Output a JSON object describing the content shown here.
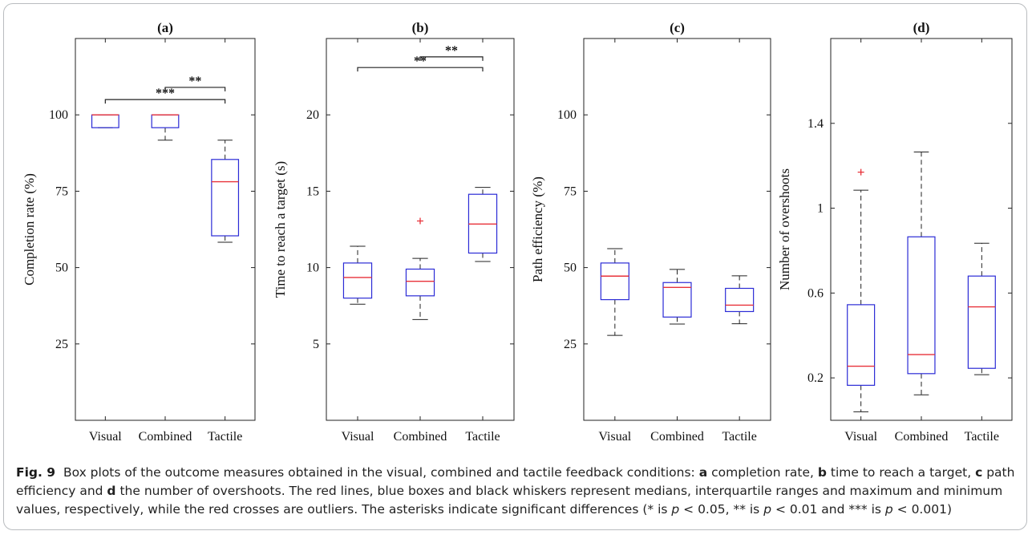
{
  "colors": {
    "box": "#2b2bd6",
    "median": "#e8323a",
    "whisker": "#222222",
    "outlier": "#e8323a",
    "axis": "#222222"
  },
  "chart_data": [
    {
      "type": "box",
      "title": "(a)",
      "ylabel": "Completion rate (%)",
      "ylim": [
        0,
        125
      ],
      "yticks": [
        25,
        50,
        75,
        100
      ],
      "categories": [
        "Visual",
        "Combined",
        "Tactile"
      ],
      "boxes": [
        {
          "q1": 95.8,
          "median": 100,
          "q3": 100,
          "whisker_low": 95.8,
          "whisker_high": 100,
          "outliers": []
        },
        {
          "q1": 95.8,
          "median": 100,
          "q3": 100,
          "whisker_low": 91.7,
          "whisker_high": 100,
          "outliers": []
        },
        {
          "q1": 60.4,
          "median": 78.1,
          "q3": 85.4,
          "whisker_low": 58.3,
          "whisker_high": 91.7,
          "outliers": []
        }
      ],
      "significance": [
        {
          "from": 1,
          "to": 2,
          "label": "**",
          "y": 109
        },
        {
          "from": 0,
          "to": 2,
          "label": "***",
          "y": 105
        }
      ]
    },
    {
      "type": "box",
      "title": "(b)",
      "ylabel": "Time to reach a target (s)",
      "ylim": [
        0,
        25
      ],
      "yticks": [
        5,
        10,
        15,
        20
      ],
      "categories": [
        "Visual",
        "Combined",
        "Tactile"
      ],
      "boxes": [
        {
          "q1": 8.0,
          "median": 9.35,
          "q3": 10.3,
          "whisker_low": 7.6,
          "whisker_high": 11.4,
          "outliers": []
        },
        {
          "q1": 8.15,
          "median": 9.1,
          "q3": 9.9,
          "whisker_low": 6.6,
          "whisker_high": 10.6,
          "outliers": [
            13.05
          ]
        },
        {
          "q1": 10.95,
          "median": 12.85,
          "q3": 14.8,
          "whisker_low": 10.4,
          "whisker_high": 15.25,
          "outliers": []
        }
      ],
      "significance": [
        {
          "from": 1,
          "to": 2,
          "label": "**",
          "y": 23.8
        },
        {
          "from": 0,
          "to": 2,
          "label": "**",
          "y": 23.1
        }
      ]
    },
    {
      "type": "box",
      "title": "(c)",
      "ylabel": "Path efficiency (%)",
      "ylim": [
        0,
        125
      ],
      "yticks": [
        25,
        50,
        75,
        100
      ],
      "categories": [
        "Visual",
        "Combined",
        "Tactile"
      ],
      "boxes": [
        {
          "q1": 39.5,
          "median": 47.2,
          "q3": 51.5,
          "whisker_low": 27.8,
          "whisker_high": 56.2,
          "outliers": []
        },
        {
          "q1": 33.8,
          "median": 43.5,
          "q3": 45.1,
          "whisker_low": 31.5,
          "whisker_high": 49.4,
          "outliers": []
        },
        {
          "q1": 35.6,
          "median": 37.7,
          "q3": 43.2,
          "whisker_low": 31.6,
          "whisker_high": 47.3,
          "outliers": []
        }
      ],
      "significance": []
    },
    {
      "type": "box",
      "title": "(d)",
      "ylabel": "Number of overshoots",
      "ylim": [
        0,
        1.8
      ],
      "yticks": [
        0.2,
        0.6,
        1,
        1.4
      ],
      "ytick_labels": [
        "0.2",
        "0.6",
        "1",
        "1.4"
      ],
      "categories": [
        "Visual",
        "Combined",
        "Tactile"
      ],
      "boxes": [
        {
          "q1": 0.165,
          "median": 0.255,
          "q3": 0.545,
          "whisker_low": 0.04,
          "whisker_high": 1.085,
          "outliers": [
            1.17
          ]
        },
        {
          "q1": 0.22,
          "median": 0.31,
          "q3": 0.865,
          "whisker_low": 0.12,
          "whisker_high": 1.265,
          "outliers": []
        },
        {
          "q1": 0.245,
          "median": 0.535,
          "q3": 0.68,
          "whisker_low": 0.215,
          "whisker_high": 0.835,
          "outliers": []
        }
      ],
      "significance": []
    }
  ],
  "caption": {
    "label": "Fig. 9",
    "p1": "Box plots of the outcome measures obtained in the visual, combined and tactile feedback conditions: ",
    "a": "a",
    "t1": " completion rate, ",
    "b": "b",
    "t2": " time to reach a target, ",
    "c": "c",
    "t3": " path efficiency and ",
    "d": "d",
    "t4": " the number of overshoots. The red lines, blue boxes and black whiskers represent medians, interquartile ranges and maximum and minimum values, respectively, while the red crosses are outliers. The asterisks indicate significant differences (* is ",
    "p_a": "p",
    "t5": " < 0.05, ** is ",
    "p_b": "p",
    "t6": " < 0.01 and *** is ",
    "p_c": "p",
    "t7": " < 0.001)"
  }
}
